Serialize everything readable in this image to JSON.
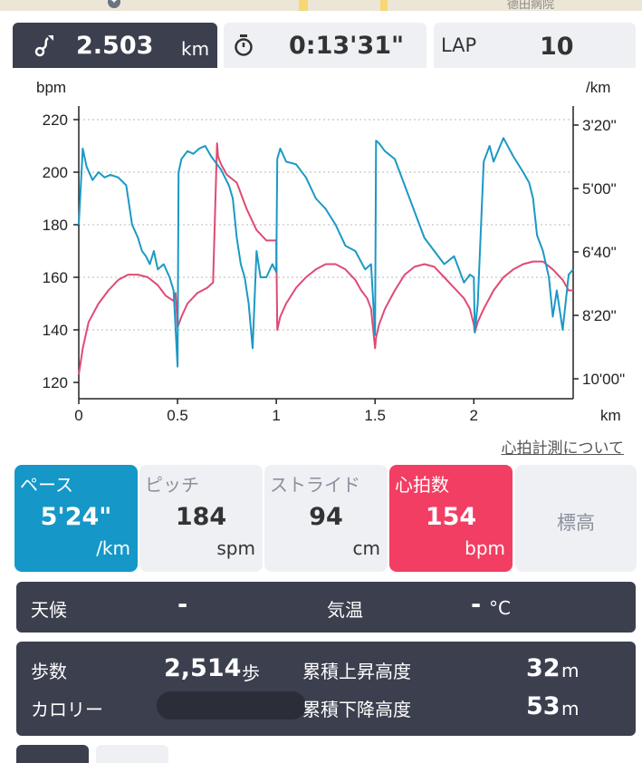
{
  "map": {
    "label_text": "德田病院"
  },
  "header": {
    "distance": {
      "value": "2.503",
      "unit": "km",
      "icon": "route-icon"
    },
    "time": {
      "value": "0:13'31\"",
      "icon": "stopwatch-icon"
    },
    "lap": {
      "label": "LAP",
      "value": "10"
    }
  },
  "chart_data": {
    "type": "line",
    "xlabel": "km",
    "y_left_label": "bpm",
    "y_right_label": "/km",
    "xlim": [
      0,
      2.503
    ],
    "x_ticks": [
      "0",
      "0.5",
      "1",
      "1.5",
      "2"
    ],
    "x_tick_values": [
      0,
      0.5,
      1,
      1.5,
      2
    ],
    "ylim_left": [
      120,
      220
    ],
    "y_left_ticks": [
      "220",
      "200",
      "180",
      "160",
      "140",
      "120"
    ],
    "y_right_ticks": [
      "3'20\"",
      "5'00\"",
      "6'40\"",
      "8'20\"",
      "10'00\""
    ],
    "grid": true,
    "series": [
      {
        "color": "#1b99c5",
        "axis": "right",
        "x": [
          0,
          0.02,
          0.04,
          0.07,
          0.1,
          0.13,
          0.16,
          0.2,
          0.24,
          0.27,
          0.3,
          0.32,
          0.34,
          0.36,
          0.38,
          0.4,
          0.43,
          0.46,
          0.48,
          0.5,
          0.505,
          0.52,
          0.55,
          0.58,
          0.61,
          0.64,
          0.67,
          0.7,
          0.72,
          0.74,
          0.76,
          0.78,
          0.8,
          0.82,
          0.84,
          0.86,
          0.88,
          0.9,
          0.92,
          0.95,
          0.98,
          1,
          1.005,
          1.02,
          1.05,
          1.1,
          1.15,
          1.2,
          1.25,
          1.3,
          1.35,
          1.4,
          1.45,
          1.48,
          1.5,
          1.505,
          1.52,
          1.55,
          1.6,
          1.65,
          1.7,
          1.75,
          1.8,
          1.85,
          1.9,
          1.95,
          1.98,
          2,
          2.005,
          2.02,
          2.05,
          2.08,
          2.1,
          2.15,
          2.2,
          2.25,
          2.28,
          2.3,
          2.32,
          2.35,
          2.38,
          2.4,
          2.42,
          2.45,
          2.48,
          2.503
        ],
        "y": [
          180,
          209,
          202,
          197,
          200,
          198,
          199,
          198,
          195,
          180,
          175,
          170,
          168,
          165,
          170,
          163,
          165,
          160,
          155,
          126,
          200,
          205,
          208,
          207,
          209,
          210,
          206,
          203,
          201,
          198,
          195,
          190,
          175,
          165,
          160,
          150,
          133,
          170,
          160,
          160,
          165,
          162,
          205,
          209,
          204,
          203,
          198,
          190,
          186,
          180,
          172,
          170,
          163,
          165,
          138,
          212,
          211,
          208,
          205,
          195,
          185,
          175,
          170,
          165,
          168,
          158,
          161,
          160,
          139,
          150,
          204,
          210,
          204,
          213,
          206,
          200,
          196,
          190,
          176,
          170,
          160,
          145,
          155,
          140,
          161,
          163
        ]
      },
      {
        "color": "#e04a73",
        "axis": "left",
        "x": [
          0,
          0.02,
          0.05,
          0.1,
          0.15,
          0.2,
          0.25,
          0.3,
          0.35,
          0.4,
          0.42,
          0.44,
          0.46,
          0.48,
          0.49,
          0.5,
          0.52,
          0.55,
          0.6,
          0.65,
          0.68,
          0.7,
          0.705,
          0.72,
          0.75,
          0.8,
          0.85,
          0.9,
          0.95,
          1,
          1.005,
          1.02,
          1.05,
          1.1,
          1.15,
          1.2,
          1.25,
          1.3,
          1.35,
          1.4,
          1.43,
          1.46,
          1.48,
          1.5,
          1.505,
          1.52,
          1.55,
          1.6,
          1.65,
          1.7,
          1.75,
          1.8,
          1.85,
          1.9,
          1.95,
          1.98,
          2,
          2.005,
          2.02,
          2.05,
          2.1,
          2.15,
          2.2,
          2.25,
          2.3,
          2.35,
          2.4,
          2.45,
          2.48,
          2.503
        ],
        "y": [
          123,
          133,
          143,
          150,
          155,
          159,
          161,
          161,
          160,
          157,
          155,
          153,
          152,
          151,
          154,
          141,
          145,
          150,
          154,
          156,
          158,
          211,
          206,
          203,
          199,
          196,
          186,
          178,
          174,
          174,
          140,
          145,
          150,
          156,
          160,
          163,
          165,
          165,
          163,
          159,
          155,
          152,
          148,
          133,
          137,
          142,
          148,
          155,
          161,
          164,
          165,
          164,
          160,
          156,
          152,
          148,
          142,
          139,
          143,
          148,
          155,
          160,
          163,
          165,
          166,
          166,
          163,
          159,
          155,
          155
        ]
      }
    ]
  },
  "chart_link": "心拍計測について",
  "metrics": [
    {
      "label": "ペース",
      "value": "5'24\"",
      "unit": "/km"
    },
    {
      "label": "ピッチ",
      "value": "184",
      "unit": "spm"
    },
    {
      "label": "ストライド",
      "value": "94",
      "unit": "cm"
    },
    {
      "label": "心拍数",
      "value": "154",
      "unit": "bpm"
    },
    {
      "label": "標高"
    }
  ],
  "weather": {
    "weather_label": "天候",
    "weather_value": "-",
    "temp_label": "気温",
    "temp_value": "-",
    "temp_unit": "°C"
  },
  "summary": {
    "steps_label": "歩数",
    "steps_value": "2,514",
    "steps_unit": "歩",
    "calorie_label": "カロリー",
    "ascent_label": "累積上昇高度",
    "ascent_value": "32",
    "ascent_unit": "m",
    "descent_label": "累積下降高度",
    "descent_value": "53",
    "descent_unit": "m"
  },
  "colors": {
    "dark": "#3b3f4e",
    "light_tile": "#eef0f4",
    "pace_blue": "#1597c8",
    "heart_pink": "#f23e63"
  }
}
